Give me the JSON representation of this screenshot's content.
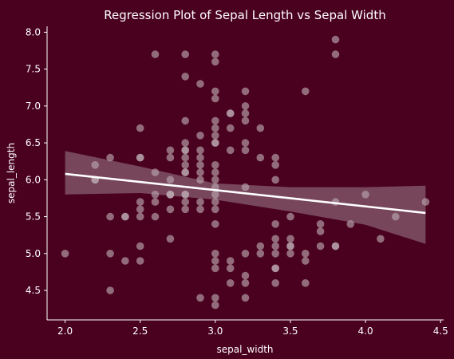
{
  "chart_data": {
    "type": "scatter",
    "title": "Regression Plot of Sepal Length vs Sepal Width",
    "xlabel": "sepal_width",
    "ylabel": "sepal_length",
    "xlim": [
      1.88,
      4.52
    ],
    "ylim": [
      4.1,
      8.08
    ],
    "xticks": [
      2.0,
      2.5,
      3.0,
      3.5,
      4.0,
      4.5
    ],
    "yticks": [
      4.5,
      5.0,
      5.5,
      6.0,
      6.5,
      7.0,
      7.5,
      8.0
    ],
    "xtick_labels": [
      "2.0",
      "2.5",
      "3.0",
      "3.5",
      "4.0",
      "4.5"
    ],
    "ytick_labels": [
      "4.5",
      "5.0",
      "5.5",
      "6.0",
      "6.5",
      "7.0",
      "7.5",
      "8.0"
    ],
    "grid": false,
    "colors": {
      "background": "#4a001f",
      "text": "#ffffff",
      "points": "#b8a6ae",
      "regression_line": "#ffffff",
      "confidence_band": "#9c7f8c"
    },
    "points": [
      [
        2.0,
        5.0
      ],
      [
        2.2,
        6.0
      ],
      [
        2.2,
        6.2
      ],
      [
        2.2,
        6.0
      ],
      [
        2.3,
        4.5
      ],
      [
        2.3,
        5.0
      ],
      [
        2.3,
        5.5
      ],
      [
        2.3,
        6.3
      ],
      [
        2.4,
        4.9
      ],
      [
        2.4,
        5.5
      ],
      [
        2.4,
        5.5
      ],
      [
        2.5,
        4.9
      ],
      [
        2.5,
        5.1
      ],
      [
        2.5,
        5.5
      ],
      [
        2.5,
        5.6
      ],
      [
        2.5,
        5.7
      ],
      [
        2.5,
        6.3
      ],
      [
        2.5,
        6.7
      ],
      [
        2.5,
        6.3
      ],
      [
        2.6,
        5.5
      ],
      [
        2.6,
        5.8
      ],
      [
        2.6,
        6.1
      ],
      [
        2.6,
        7.7
      ],
      [
        2.6,
        5.7
      ],
      [
        2.7,
        5.2
      ],
      [
        2.7,
        5.6
      ],
      [
        2.7,
        5.8
      ],
      [
        2.7,
        5.8
      ],
      [
        2.7,
        6.0
      ],
      [
        2.7,
        6.3
      ],
      [
        2.7,
        6.4
      ],
      [
        2.7,
        5.8
      ],
      [
        2.8,
        5.6
      ],
      [
        2.8,
        5.7
      ],
      [
        2.8,
        5.8
      ],
      [
        2.8,
        6.1
      ],
      [
        2.8,
        6.2
      ],
      [
        2.8,
        6.3
      ],
      [
        2.8,
        6.4
      ],
      [
        2.8,
        6.5
      ],
      [
        2.8,
        6.8
      ],
      [
        2.8,
        7.4
      ],
      [
        2.8,
        7.7
      ],
      [
        2.8,
        6.4
      ],
      [
        2.8,
        5.8
      ],
      [
        2.8,
        6.1
      ],
      [
        2.9,
        4.4
      ],
      [
        2.9,
        5.6
      ],
      [
        2.9,
        5.7
      ],
      [
        2.9,
        6.0
      ],
      [
        2.9,
        6.1
      ],
      [
        2.9,
        6.2
      ],
      [
        2.9,
        6.4
      ],
      [
        2.9,
        6.6
      ],
      [
        2.9,
        7.3
      ],
      [
        2.9,
        6.3
      ],
      [
        3.0,
        4.3
      ],
      [
        3.0,
        4.4
      ],
      [
        3.0,
        4.8
      ],
      [
        3.0,
        4.9
      ],
      [
        3.0,
        5.0
      ],
      [
        3.0,
        5.4
      ],
      [
        3.0,
        5.6
      ],
      [
        3.0,
        5.7
      ],
      [
        3.0,
        5.9
      ],
      [
        3.0,
        6.0
      ],
      [
        3.0,
        6.1
      ],
      [
        3.0,
        6.5
      ],
      [
        3.0,
        6.6
      ],
      [
        3.0,
        6.7
      ],
      [
        3.0,
        6.8
      ],
      [
        3.0,
        7.1
      ],
      [
        3.0,
        7.2
      ],
      [
        3.0,
        7.6
      ],
      [
        3.0,
        7.7
      ],
      [
        3.0,
        5.8
      ],
      [
        3.0,
        6.5
      ],
      [
        3.0,
        6.2
      ],
      [
        3.1,
        4.6
      ],
      [
        3.1,
        4.8
      ],
      [
        3.1,
        4.9
      ],
      [
        3.1,
        6.4
      ],
      [
        3.1,
        6.7
      ],
      [
        3.1,
        6.9
      ],
      [
        3.1,
        6.9
      ],
      [
        3.2,
        4.4
      ],
      [
        3.2,
        4.6
      ],
      [
        3.2,
        4.7
      ],
      [
        3.2,
        5.0
      ],
      [
        3.2,
        5.9
      ],
      [
        3.2,
        6.4
      ],
      [
        3.2,
        6.5
      ],
      [
        3.2,
        6.8
      ],
      [
        3.2,
        6.9
      ],
      [
        3.2,
        7.0
      ],
      [
        3.2,
        7.2
      ],
      [
        3.3,
        5.0
      ],
      [
        3.3,
        5.1
      ],
      [
        3.3,
        6.3
      ],
      [
        3.3,
        6.7
      ],
      [
        3.4,
        4.6
      ],
      [
        3.4,
        4.8
      ],
      [
        3.4,
        5.0
      ],
      [
        3.4,
        5.1
      ],
      [
        3.4,
        5.2
      ],
      [
        3.4,
        5.4
      ],
      [
        3.4,
        6.0
      ],
      [
        3.4,
        6.2
      ],
      [
        3.4,
        6.3
      ],
      [
        3.4,
        4.8
      ],
      [
        3.5,
        5.0
      ],
      [
        3.5,
        5.1
      ],
      [
        3.5,
        5.2
      ],
      [
        3.5,
        5.5
      ],
      [
        3.5,
        5.1
      ],
      [
        3.6,
        4.6
      ],
      [
        3.6,
        4.9
      ],
      [
        3.6,
        5.0
      ],
      [
        3.6,
        7.2
      ],
      [
        3.7,
        5.1
      ],
      [
        3.7,
        5.3
      ],
      [
        3.7,
        5.4
      ],
      [
        3.8,
        5.1
      ],
      [
        3.8,
        5.7
      ],
      [
        3.8,
        7.7
      ],
      [
        3.8,
        7.9
      ],
      [
        3.8,
        5.1
      ],
      [
        3.9,
        5.4
      ],
      [
        4.0,
        5.8
      ],
      [
        4.1,
        5.2
      ],
      [
        4.2,
        5.5
      ],
      [
        4.4,
        5.7
      ]
    ],
    "regression": {
      "x": [
        2.0,
        4.4
      ],
      "y": [
        6.08,
        5.55
      ]
    },
    "confidence_band": [
      {
        "x": 2.0,
        "lower": 5.8,
        "upper": 6.39
      },
      {
        "x": 2.5,
        "lower": 5.82,
        "upper": 6.18
      },
      {
        "x": 3.0,
        "lower": 5.73,
        "upper": 5.95
      },
      {
        "x": 3.5,
        "lower": 5.57,
        "upper": 5.9
      },
      {
        "x": 4.0,
        "lower": 5.39,
        "upper": 5.9
      },
      {
        "x": 4.4,
        "lower": 5.13,
        "upper": 5.92
      }
    ]
  }
}
